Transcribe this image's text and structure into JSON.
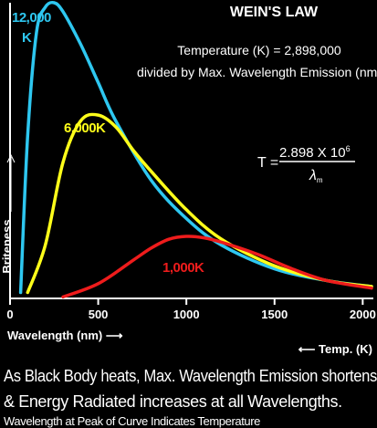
{
  "chart_data": {
    "type": "line",
    "title": "WEIN'S LAW",
    "subtitle_lines": [
      "Temperature (K) = 2,898,000",
      "divided by Max. Wavelength Emission (nm)"
    ],
    "formula": {
      "lhs": "T =",
      "numerator": "2.898 X 10",
      "exponent": "6",
      "denominator": "λ",
      "denominator_sub": "m"
    },
    "xlabel": "Wavelength (nm)",
    "xlabel_arrow": "⟶",
    "ylabel": "Briteness",
    "temp_axis_label": "Temp. (K)",
    "temp_axis_arrow": "⟵",
    "xlim": [
      0,
      2050
    ],
    "ylim": [
      0,
      1
    ],
    "x_ticks": [
      0,
      500,
      1000,
      1500,
      2000
    ],
    "x_tick_labels": [
      "0",
      "500",
      "1000",
      "1500",
      "2000"
    ],
    "grid": false,
    "series": [
      {
        "name": "12,000 K",
        "label_lines": [
          "12,000",
          "K"
        ],
        "color": "#2ec7f0",
        "x": [
          60,
          100,
          150,
          200,
          250,
          300,
          400,
          500,
          600,
          800,
          1000,
          1200,
          1500,
          1800,
          2050
        ],
        "y": [
          0.02,
          0.55,
          0.9,
          0.985,
          1.0,
          0.97,
          0.86,
          0.73,
          0.6,
          0.4,
          0.27,
          0.18,
          0.1,
          0.06,
          0.04
        ]
      },
      {
        "name": "6,000K",
        "label_lines": [
          "6,000K"
        ],
        "color": "#ffff1a",
        "x": [
          100,
          200,
          300,
          400,
          500,
          600,
          700,
          800,
          1000,
          1200,
          1500,
          1800,
          2050
        ],
        "y": [
          0.02,
          0.18,
          0.46,
          0.6,
          0.62,
          0.58,
          0.5,
          0.43,
          0.3,
          0.2,
          0.11,
          0.06,
          0.04
        ]
      },
      {
        "name": "1,000K",
        "label_lines": [
          "1,000K"
        ],
        "color": "#ee1c1c",
        "x": [
          300,
          500,
          700,
          800,
          900,
          1000,
          1100,
          1200,
          1400,
          1600,
          1800,
          2050
        ],
        "y": [
          0.005,
          0.05,
          0.13,
          0.17,
          0.2,
          0.21,
          0.205,
          0.19,
          0.15,
          0.1,
          0.06,
          0.035
        ]
      }
    ]
  },
  "caption": {
    "line1": "As Black Body heats, Max. Wavelength Emission shortens",
    "line2": "& Energy Radiated increases at all Wavelengths.",
    "line3": "Wavelength at Peak of Curve Indicates Temperature"
  }
}
